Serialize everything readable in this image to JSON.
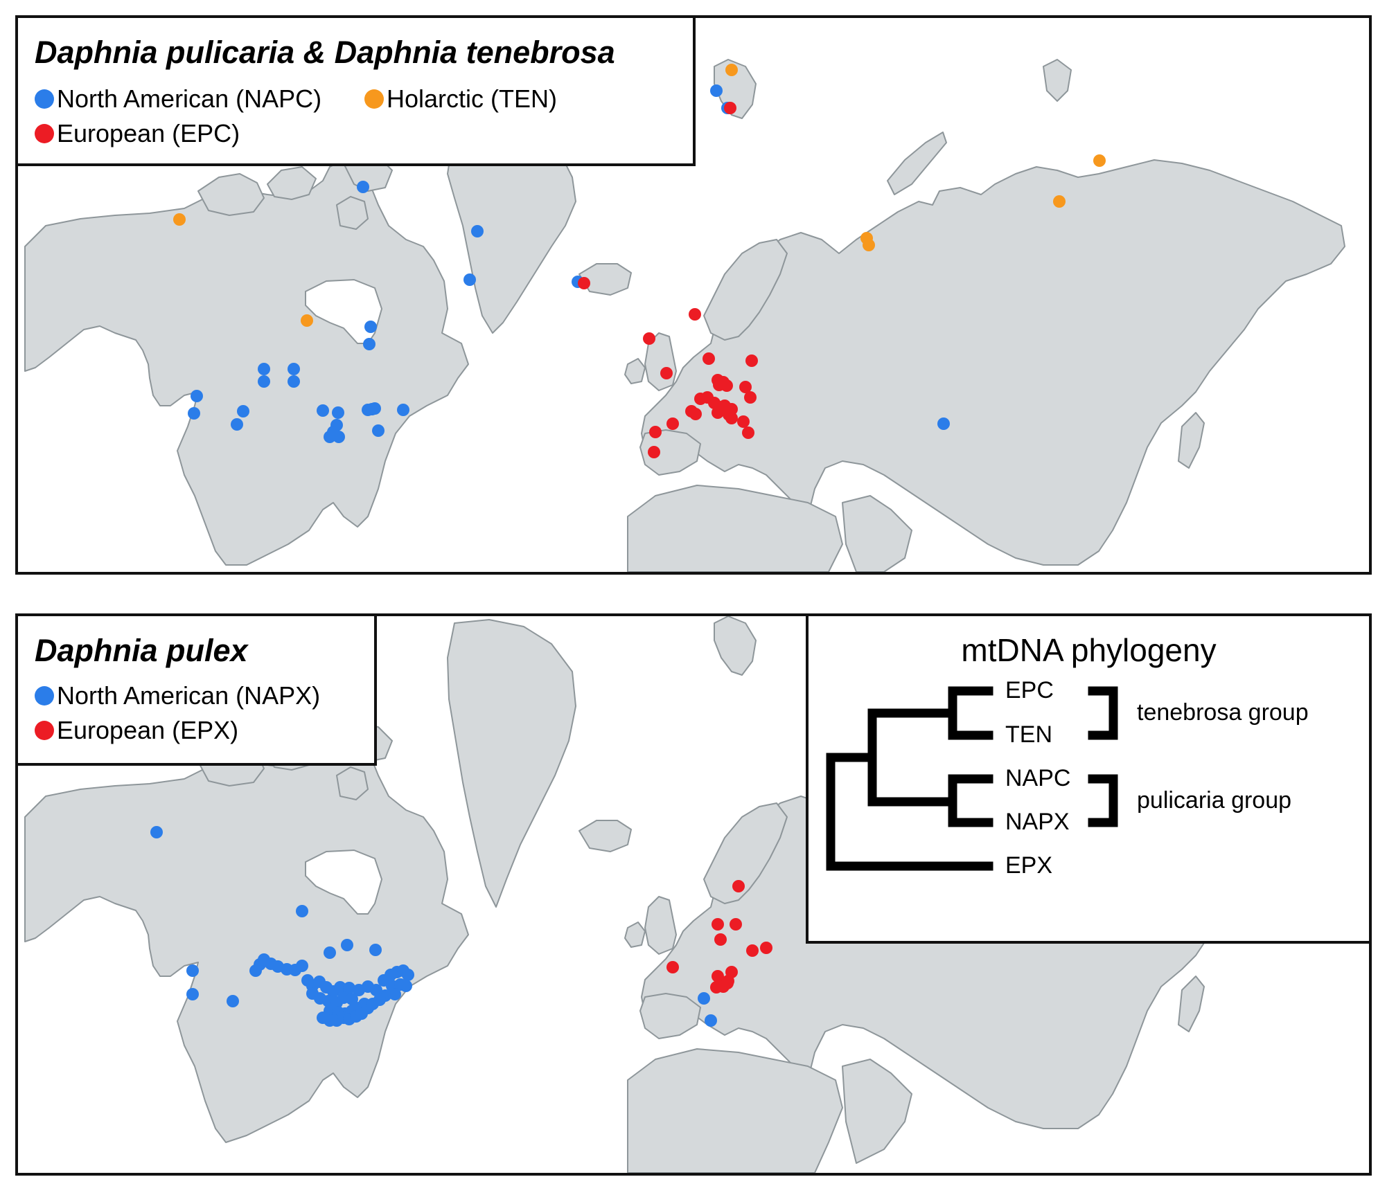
{
  "panels": {
    "top": {
      "title": "Daphnia pulicaria & Daphnia tenebrosa",
      "legend": [
        {
          "label": "North American (NAPC)",
          "color": "#2b7de9"
        },
        {
          "label": "Holarctic (TEN)",
          "color": "#f7981d"
        },
        {
          "label": "European (EPC)",
          "color": "#ec1c24"
        }
      ]
    },
    "bottom": {
      "title": "Daphnia pulex",
      "legend": [
        {
          "label": "North American (NAPX)",
          "color": "#2b7de9"
        },
        {
          "label": "European (EPX)",
          "color": "#ec1c24"
        }
      ]
    }
  },
  "phylogeny": {
    "title": "mtDNA phylogeny",
    "tips": [
      "EPC",
      "TEN",
      "NAPC",
      "NAPX",
      "EPX"
    ],
    "groups": [
      {
        "label": "tenebrosa group",
        "members": [
          "EPC",
          "TEN"
        ]
      },
      {
        "label": "pulicaria group",
        "members": [
          "NAPC",
          "NAPX"
        ]
      }
    ]
  },
  "colors": {
    "land": "#d5d9db",
    "coast": "#8e969a",
    "blue": "#2b7de9",
    "orange": "#f7981d",
    "red": "#ec1c24"
  }
}
